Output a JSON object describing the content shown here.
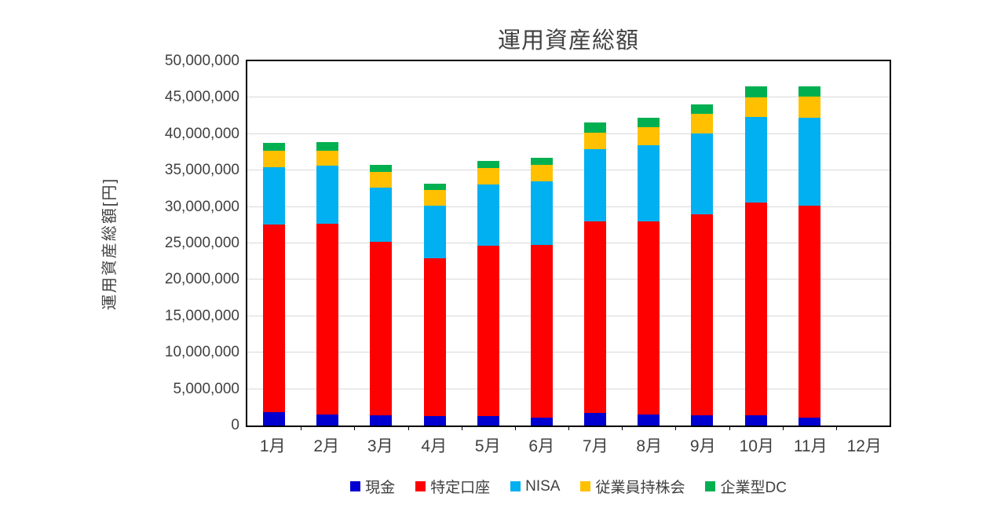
{
  "title": "運用資産総額",
  "colors": {
    "cash_blue": "#0000D0",
    "tokutei_red": "#FF0000",
    "nisa_lightblue": "#00B0F0",
    "mochikabu_yellow": "#FFC000",
    "dc_green": "#00B050",
    "gridline": "#D9D9D9",
    "axis": "#000000",
    "text": "#404040"
  },
  "chart_data": {
    "type": "bar",
    "stacked": true,
    "title": "運用資産総額",
    "ylabel": "運用資産総額[円]",
    "xlabel": "",
    "ylim": [
      0,
      50000000
    ],
    "ytick_interval": 5000000,
    "ytick_labels": [
      "0",
      "5,000,000",
      "10,000,000",
      "15,000,000",
      "20,000,000",
      "25,000,000",
      "30,000,000",
      "35,000,000",
      "40,000,000",
      "45,000,000",
      "50,000,000"
    ],
    "grid": true,
    "legend_position": "bottom",
    "categories": [
      "1月",
      "2月",
      "3月",
      "4月",
      "5月",
      "6月",
      "7月",
      "8月",
      "9月",
      "10月",
      "11月",
      "12月"
    ],
    "series": [
      {
        "name": "現金",
        "color": "#0000D0",
        "values": [
          1800000,
          1500000,
          1400000,
          1300000,
          1300000,
          1100000,
          1700000,
          1500000,
          1400000,
          1400000,
          1100000,
          0
        ]
      },
      {
        "name": "特定口座",
        "color": "#FF0000",
        "values": [
          25800000,
          26200000,
          23800000,
          21700000,
          23400000,
          23700000,
          26300000,
          26500000,
          27600000,
          29200000,
          29100000,
          0
        ]
      },
      {
        "name": "NISA",
        "color": "#00B0F0",
        "values": [
          7900000,
          8000000,
          7500000,
          7200000,
          8400000,
          8700000,
          9900000,
          10500000,
          11100000,
          11800000,
          12000000,
          0
        ]
      },
      {
        "name": "従業員持株会",
        "color": "#FFC000",
        "values": [
          2200000,
          2000000,
          2100000,
          2100000,
          2300000,
          2300000,
          2300000,
          2400000,
          2700000,
          2700000,
          3000000,
          0
        ]
      },
      {
        "name": "企業型DC",
        "color": "#00B050",
        "values": [
          1100000,
          1200000,
          1000000,
          900000,
          900000,
          1000000,
          1400000,
          1300000,
          1300000,
          1500000,
          1400000,
          0
        ]
      }
    ]
  }
}
